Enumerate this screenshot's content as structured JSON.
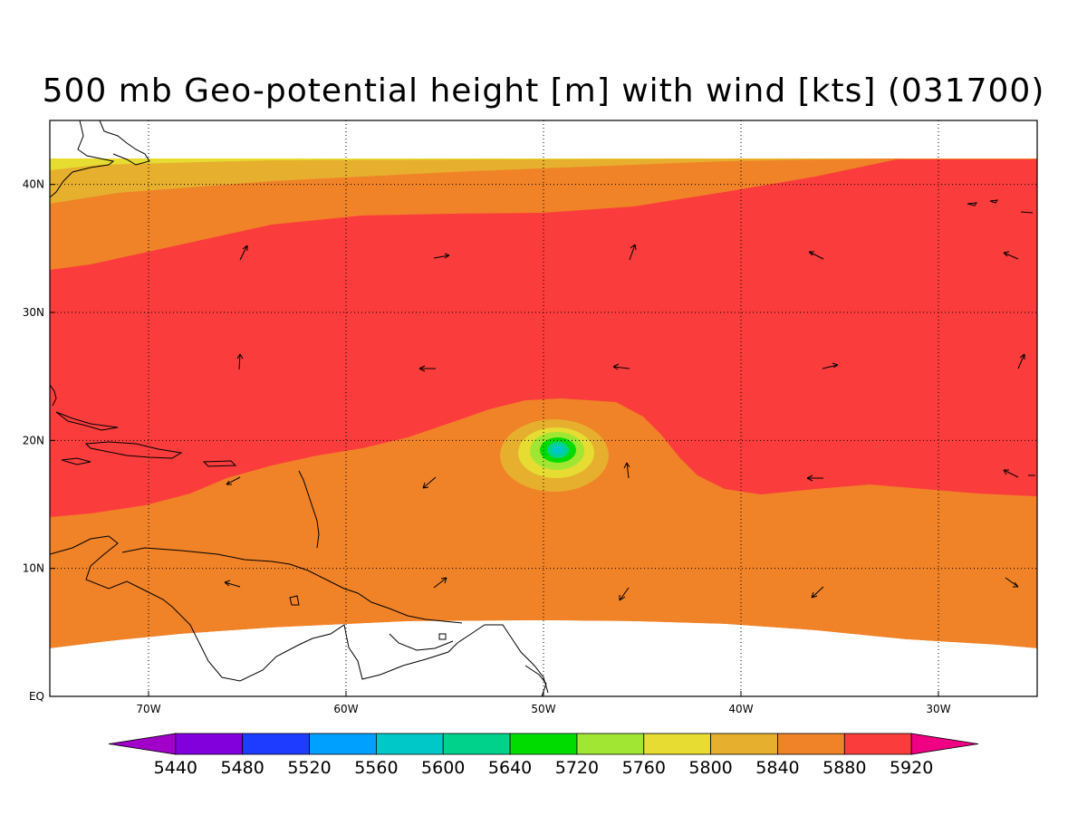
{
  "title": "500 mb Geo-potential height [m] with wind [kts] (031700)",
  "map": {
    "lon_range": [
      -75,
      -25
    ],
    "lat_range": [
      0,
      45
    ],
    "lon_ticks": [
      {
        "value": -70,
        "label": "70W"
      },
      {
        "value": -60,
        "label": "60W"
      },
      {
        "value": -50,
        "label": "50W"
      },
      {
        "value": -40,
        "label": "40W"
      },
      {
        "value": -30,
        "label": "30W"
      }
    ],
    "lat_ticks": [
      {
        "value": 0,
        "label": "EQ"
      },
      {
        "value": 10,
        "label": "10N"
      },
      {
        "value": 20,
        "label": "20N"
      },
      {
        "value": 30,
        "label": "30N"
      },
      {
        "value": 40,
        "label": "40N"
      }
    ],
    "grid": "dotted"
  },
  "colorbar": {
    "levels": [
      "5440",
      "5480",
      "5520",
      "5560",
      "5600",
      "5640",
      "5720",
      "5760",
      "5800",
      "5840",
      "5880",
      "5920"
    ],
    "colors": [
      "#a000c8",
      "#8200dc",
      "#1e3cff",
      "#00a0ff",
      "#00c8c8",
      "#00d28c",
      "#00dc00",
      "#a0e632",
      "#e6dc32",
      "#e6af2d",
      "#f08228",
      "#fa3c3c",
      "#f00082"
    ]
  },
  "field_colors": {
    "c5640": "#00d28c",
    "c5600": "#00c8c8",
    "c5720": "#00dc00",
    "c5760": "#a0e632",
    "c5800": "#e6dc32",
    "c5840": "#e6af2d",
    "c5880": "#f08228",
    "c5920": "#fa3c3c"
  }
}
